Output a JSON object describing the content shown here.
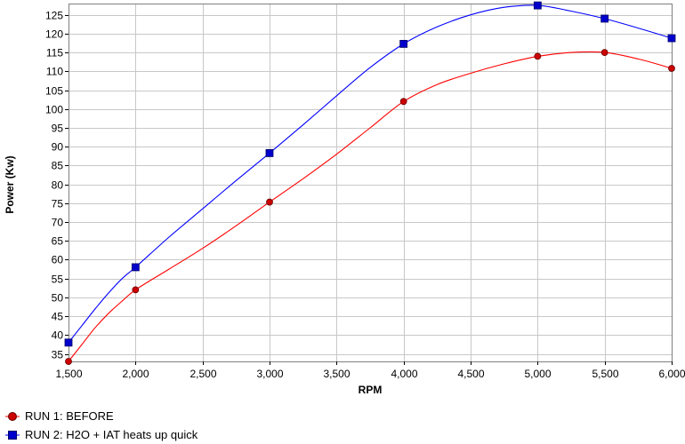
{
  "chart_data": {
    "type": "line",
    "title": "",
    "xlabel": "RPM",
    "ylabel": "Power (Kw)",
    "xlim": [
      1500,
      6000
    ],
    "ylim": [
      33,
      128
    ],
    "x_ticks": [
      1500,
      2000,
      2500,
      3000,
      3500,
      4000,
      4500,
      5000,
      5500,
      6000
    ],
    "x_tick_labels": [
      "1,500",
      "2,000",
      "2,500",
      "3,000",
      "3,500",
      "4,000",
      "4,500",
      "5,000",
      "5,500",
      "6,000"
    ],
    "y_ticks": [
      35,
      40,
      45,
      50,
      55,
      60,
      65,
      70,
      75,
      80,
      85,
      90,
      95,
      100,
      105,
      110,
      115,
      120,
      125
    ],
    "y_tick_labels": [
      "35",
      "40",
      "45",
      "50",
      "55",
      "60",
      "65",
      "70",
      "75",
      "80",
      "85",
      "90",
      "95",
      "100",
      "105",
      "110",
      "115",
      "120",
      "125"
    ],
    "grid": true,
    "legend_position": "bottom-left",
    "series": [
      {
        "name": "RUN 1: BEFORE",
        "color": "#ff0000",
        "marker": "circle",
        "marker_color": "#cc0000",
        "markers_x": [
          1500,
          2000,
          3000,
          4000,
          5000,
          5500,
          6000
        ],
        "markers_y": [
          33,
          52,
          75.3,
          102,
          114,
          115,
          110.8
        ],
        "curve": [
          [
            1500,
            33
          ],
          [
            1600,
            37.5
          ],
          [
            1700,
            42
          ],
          [
            1800,
            45.8
          ],
          [
            1900,
            49
          ],
          [
            2000,
            52
          ],
          [
            2250,
            57.5
          ],
          [
            2500,
            63
          ],
          [
            2750,
            69
          ],
          [
            3000,
            75.3
          ],
          [
            3250,
            81.5
          ],
          [
            3500,
            88
          ],
          [
            3750,
            95
          ],
          [
            4000,
            102
          ],
          [
            4250,
            106.5
          ],
          [
            4500,
            109.5
          ],
          [
            4750,
            112
          ],
          [
            5000,
            114
          ],
          [
            5250,
            115
          ],
          [
            5500,
            115
          ],
          [
            5750,
            113.3
          ],
          [
            6000,
            110.8
          ]
        ]
      },
      {
        "name": "RUN 2: H2O + IAT heats up quick",
        "color": "#0000ff",
        "marker": "square",
        "marker_color": "#0000cc",
        "markers_x": [
          1500,
          2000,
          3000,
          4000,
          5000,
          5500,
          6000
        ],
        "markers_y": [
          38,
          58,
          88.3,
          117.3,
          127.5,
          124,
          118.8
        ],
        "curve": [
          [
            1500,
            38
          ],
          [
            1600,
            42.5
          ],
          [
            1700,
            47
          ],
          [
            1800,
            51.2
          ],
          [
            1900,
            55
          ],
          [
            2000,
            58
          ],
          [
            2250,
            66
          ],
          [
            2500,
            73.5
          ],
          [
            2750,
            81
          ],
          [
            3000,
            88.3
          ],
          [
            3250,
            95.8
          ],
          [
            3500,
            103.5
          ],
          [
            3750,
            111
          ],
          [
            4000,
            117.3
          ],
          [
            4250,
            121.8
          ],
          [
            4500,
            125
          ],
          [
            4750,
            127
          ],
          [
            5000,
            127.5
          ],
          [
            5250,
            126
          ],
          [
            5500,
            124
          ],
          [
            5750,
            121.5
          ],
          [
            6000,
            118.8
          ]
        ]
      }
    ]
  }
}
